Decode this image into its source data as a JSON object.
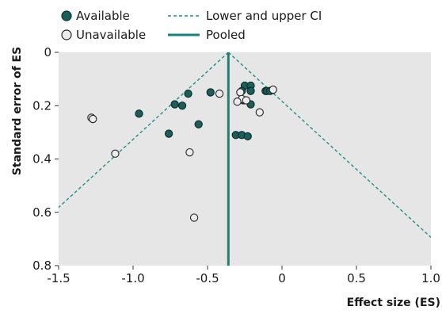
{
  "chart_data": {
    "type": "scatter",
    "xlabel": "Effect size (ES)",
    "ylabel": "Standard error of ES",
    "xlim": [
      -1.5,
      1.0
    ],
    "ylim": [
      0,
      0.8
    ],
    "y_inverted": true,
    "grid": false,
    "xticks": [
      "-1.5",
      "-1.0",
      "-0.5",
      "0",
      "0.5",
      "1.0"
    ],
    "yticks": [
      "0",
      "0.2",
      "0.4",
      "0.6",
      "0.8"
    ],
    "legend_position": "top-left, outside plot",
    "pooled_es": -0.36,
    "ci_multiplier": 1.96,
    "legend": {
      "available": "Available",
      "unavailable": "Unavailable",
      "ci": "Lower and upper CI",
      "pooled": "Pooled"
    },
    "colors": {
      "available": "#1b5e5b",
      "unavailable": "#e6e6e6",
      "ci_line": "#1f8f88",
      "pooled_line": "#17827c",
      "plot_background": "#e6e6e6"
    },
    "series": [
      {
        "name": "Available",
        "points": [
          {
            "x": -0.25,
            "y": 0.125
          },
          {
            "x": -0.21,
            "y": 0.125
          },
          {
            "x": -0.27,
            "y": 0.145
          },
          {
            "x": -0.21,
            "y": 0.145
          },
          {
            "x": -0.11,
            "y": 0.145
          },
          {
            "x": -0.1,
            "y": 0.145
          },
          {
            "x": -0.08,
            "y": 0.145
          },
          {
            "x": -0.48,
            "y": 0.15
          },
          {
            "x": -0.63,
            "y": 0.155
          },
          {
            "x": -0.26,
            "y": 0.18
          },
          {
            "x": -0.21,
            "y": 0.195
          },
          {
            "x": -0.72,
            "y": 0.195
          },
          {
            "x": -0.67,
            "y": 0.2
          },
          {
            "x": -0.96,
            "y": 0.23
          },
          {
            "x": -0.56,
            "y": 0.27
          },
          {
            "x": -0.76,
            "y": 0.305
          },
          {
            "x": -0.31,
            "y": 0.31
          },
          {
            "x": -0.27,
            "y": 0.31
          },
          {
            "x": -0.23,
            "y": 0.315
          }
        ]
      },
      {
        "name": "Unavailable",
        "points": [
          {
            "x": -0.06,
            "y": 0.14
          },
          {
            "x": -0.28,
            "y": 0.15
          },
          {
            "x": -0.42,
            "y": 0.155
          },
          {
            "x": -0.27,
            "y": 0.175
          },
          {
            "x": -0.3,
            "y": 0.185
          },
          {
            "x": -0.24,
            "y": 0.18
          },
          {
            "x": -0.15,
            "y": 0.225
          },
          {
            "x": -1.28,
            "y": 0.245
          },
          {
            "x": -1.27,
            "y": 0.25
          },
          {
            "x": -0.62,
            "y": 0.375
          },
          {
            "x": -1.12,
            "y": 0.38
          },
          {
            "x": -0.59,
            "y": 0.62
          }
        ]
      }
    ]
  }
}
